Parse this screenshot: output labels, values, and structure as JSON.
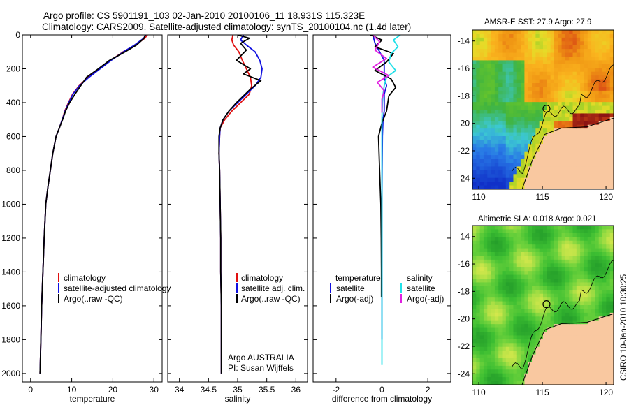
{
  "title": {
    "line1": "Argo profile: CS 5901191_103 02-Jan-2010 20100106_11 18.931S 115.323E",
    "line2": "Climatology: CARS2009. Satellite-adjusted climatology: synTS_20100104.nc (1.4d later)"
  },
  "side_label": "CSIRO 10-Jan-2010 10:30:25",
  "colors": {
    "climatology": "#e01010",
    "satellite": "#1010e0",
    "argo": "#000000",
    "sat_salinity": "#20e0e8",
    "argo_salinity": "#e020e0",
    "land": "#f9c8a0",
    "ocean_blue": "#1030c0",
    "ocean_green": "#40c040",
    "warm": "#f09010"
  },
  "chart_data": [
    {
      "type": "line",
      "id": "temperature",
      "xlabel": "temperature",
      "ylabel": "",
      "xlim": [
        -2,
        32
      ],
      "ylim": [
        0,
        2050
      ],
      "y_reversed": true,
      "xticks": [
        0,
        10,
        20,
        30
      ],
      "yticks": [
        0,
        200,
        400,
        600,
        800,
        1000,
        1200,
        1400,
        1600,
        1800,
        2000
      ],
      "legend": [
        "climatology",
        "satellite-adjusted climatology",
        "Argo(..raw -QC)"
      ],
      "series": [
        {
          "name": "climatology",
          "color": "#e01010",
          "x": [
            28.4,
            27.8,
            25.5,
            22.5,
            19.5,
            16.8,
            14.0,
            11.8,
            10.2,
            9.2,
            8.3,
            7.7,
            7.0,
            6.2,
            5.4,
            4.8,
            4.2,
            3.7,
            3.3,
            3.0,
            2.7,
            2.5,
            2.3
          ],
          "y": [
            0,
            20,
            60,
            100,
            150,
            200,
            250,
            300,
            350,
            400,
            450,
            500,
            550,
            600,
            700,
            800,
            900,
            1000,
            1200,
            1400,
            1600,
            1800,
            2000
          ]
        },
        {
          "name": "satellite-adjusted climatology",
          "color": "#1010e0",
          "x": [
            28.0,
            27.5,
            25.3,
            22.6,
            19.6,
            16.9,
            14.2,
            11.9,
            10.3,
            9.3,
            8.4,
            7.7,
            7.0,
            6.2,
            5.4,
            4.8,
            4.2,
            3.7,
            3.3,
            3.0,
            2.7,
            2.5,
            2.3
          ],
          "y": [
            0,
            20,
            60,
            100,
            150,
            200,
            250,
            300,
            350,
            400,
            450,
            500,
            550,
            600,
            700,
            800,
            900,
            1000,
            1200,
            1400,
            1600,
            1800,
            2000
          ]
        },
        {
          "name": "Argo(..raw -QC)",
          "color": "#000000",
          "x": [
            27.9,
            27.6,
            25.8,
            23.0,
            19.2,
            16.5,
            13.6,
            12.2,
            10.8,
            9.5,
            8.5,
            7.8,
            7.0,
            6.2,
            5.4,
            4.8,
            4.2,
            3.7,
            3.3,
            3.0,
            2.7,
            2.5,
            2.3
          ],
          "y": [
            0,
            20,
            60,
            100,
            150,
            200,
            250,
            300,
            350,
            400,
            450,
            500,
            550,
            600,
            700,
            800,
            900,
            1000,
            1200,
            1400,
            1600,
            1800,
            2000
          ]
        }
      ]
    },
    {
      "type": "line",
      "id": "salinity",
      "xlabel": "salinity",
      "xlim": [
        33.8,
        36.2
      ],
      "ylim": [
        0,
        2050
      ],
      "y_reversed": true,
      "xticks": [
        34,
        34.5,
        35,
        35.5,
        36
      ],
      "legend": [
        "climatology",
        "satellite adj. clim.",
        "Argo(..raw -QC)"
      ],
      "annotation": [
        "Argo AUSTRALIA",
        "PI: Susan Wijffels"
      ],
      "series": [
        {
          "name": "climatology",
          "color": "#e01010",
          "x": [
            34.92,
            34.9,
            34.93,
            35.02,
            35.08,
            35.15,
            35.22,
            35.24,
            35.2,
            35.05,
            34.9,
            34.78,
            34.7,
            34.69,
            34.68,
            34.69,
            34.7,
            34.71,
            34.71,
            34.72,
            34.72,
            34.72
          ],
          "y": [
            0,
            30,
            60,
            100,
            150,
            200,
            250,
            300,
            350,
            400,
            450,
            500,
            550,
            600,
            700,
            800,
            1000,
            1200,
            1400,
            1600,
            1800,
            2000
          ]
        },
        {
          "name": "satellite adj. clim.",
          "color": "#1010e0",
          "x": [
            35.1,
            35.05,
            35.15,
            35.3,
            35.38,
            35.42,
            35.4,
            35.3,
            35.15,
            35.0,
            34.85,
            34.75,
            34.7,
            34.69,
            34.68,
            34.69,
            34.7,
            34.71,
            34.71,
            34.72,
            34.72,
            34.72
          ],
          "y": [
            0,
            30,
            60,
            100,
            150,
            200,
            250,
            300,
            350,
            400,
            450,
            500,
            550,
            600,
            700,
            800,
            1000,
            1200,
            1400,
            1600,
            1800,
            2000
          ]
        },
        {
          "name": "Argo(..raw -QC)",
          "color": "#000000",
          "x": [
            35.0,
            35.2,
            35.05,
            35.15,
            34.98,
            35.22,
            35.1,
            35.4,
            35.22,
            34.98,
            34.85,
            34.75,
            34.7,
            34.68,
            34.68,
            34.69,
            34.7,
            34.71,
            34.71,
            34.72,
            34.72,
            34.72
          ],
          "y": [
            0,
            20,
            50,
            90,
            150,
            200,
            230,
            270,
            320,
            400,
            450,
            500,
            550,
            600,
            700,
            800,
            1000,
            1200,
            1400,
            1600,
            1800,
            2000
          ]
        }
      ]
    },
    {
      "type": "line",
      "id": "difference",
      "xlabel": "difference from climatology",
      "xlim": [
        -3,
        3
      ],
      "ylim": [
        0,
        2050
      ],
      "y_reversed": true,
      "xticks": [
        -2,
        0,
        2
      ],
      "legend": {
        "temperature_heading": "temperature",
        "salinity_heading": "salinity",
        "temperature": [
          "satellite",
          "Argo(-adj)"
        ],
        "salinity": [
          "satellite",
          "Argo(-adj)"
        ]
      },
      "series": [
        {
          "name": "temperature satellite",
          "color": "#1010e0",
          "x": [
            -0.4,
            -0.3,
            -0.1,
            0.1,
            0.1,
            0.1,
            0.2,
            0.1,
            0.1,
            0.1,
            0.05,
            0.02,
            0.01,
            0.0,
            0.0,
            0.0,
            0.0,
            0.0
          ],
          "y": [
            0,
            50,
            100,
            150,
            200,
            250,
            300,
            350,
            400,
            450,
            500,
            600,
            800,
            1000,
            1200,
            1400,
            1600,
            1800
          ]
        },
        {
          "name": "temperature Argo(-adj)",
          "color": "#000000",
          "x": [
            -0.5,
            0.0,
            -0.3,
            0.5,
            0.2,
            -0.3,
            0.4,
            0.6,
            0.3,
            0.2,
            0.0,
            -0.15,
            -0.1,
            -0.05,
            -0.03,
            -0.02,
            -0.02
          ],
          "y": [
            0,
            30,
            70,
            110,
            160,
            210,
            260,
            310,
            360,
            450,
            520,
            600,
            800,
            1000,
            1200,
            1400,
            1550
          ]
        },
        {
          "name": "salinity satellite",
          "color": "#20e0e8",
          "x": [
            0.8,
            0.5,
            0.7,
            0.4,
            0.3,
            0.6,
            0.2,
            0.1,
            0.05,
            0.02,
            0.01,
            0.0,
            0.0,
            0.0,
            0.0,
            0.0,
            0.0,
            0.0
          ],
          "y": [
            0,
            30,
            70,
            110,
            160,
            210,
            250,
            300,
            350,
            400,
            450,
            500,
            600,
            800,
            1000,
            1200,
            1400,
            1950
          ]
        },
        {
          "name": "salinity Argo(-adj)",
          "color": "#e020e0",
          "x": [
            -0.4,
            -0.1,
            -0.3,
            0.2,
            -0.4,
            0.3,
            -0.2,
            0.1,
            0.0,
            0.0,
            0.0
          ],
          "y": [
            0,
            40,
            90,
            140,
            190,
            240,
            280,
            330,
            380,
            420,
            460
          ]
        }
      ]
    },
    {
      "type": "heatmap",
      "id": "amsre_sst",
      "title": "AMSR-E SST: 27.9  Argo: 27.9",
      "xlim": [
        109.5,
        120.6
      ],
      "ylim": [
        -24.8,
        -13.2
      ],
      "xticks": [
        110,
        115,
        120
      ],
      "yticks": [
        -14,
        -16,
        -18,
        -20,
        -22,
        -24
      ],
      "argo_position": {
        "lon": 115.323,
        "lat": -18.931
      }
    },
    {
      "type": "heatmap",
      "id": "altimetric_sla",
      "title": "Altimetric SLA: 0.018  Argo: 0.021",
      "xlim": [
        109.5,
        120.6
      ],
      "ylim": [
        -24.8,
        -13.2
      ],
      "xticks": [
        110,
        115,
        120
      ],
      "yticks": [
        -14,
        -16,
        -18,
        -20,
        -22,
        -24
      ],
      "argo_position": {
        "lon": 115.323,
        "lat": -18.931
      }
    }
  ]
}
